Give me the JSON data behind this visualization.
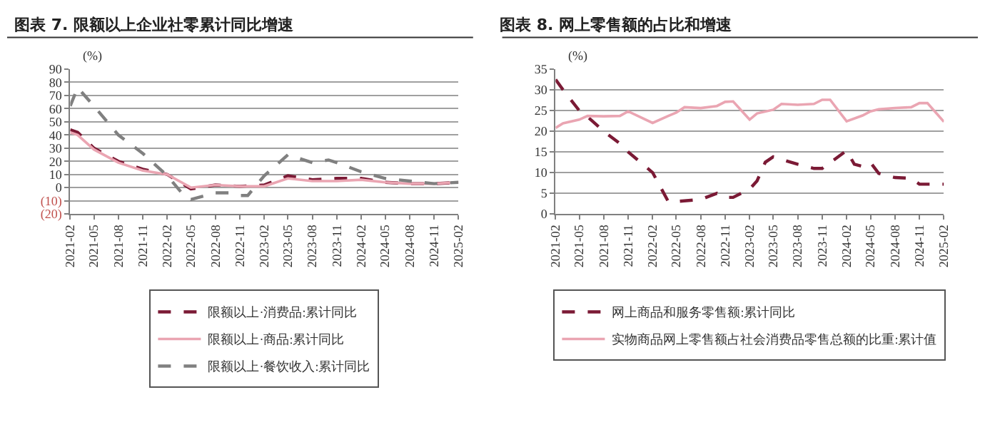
{
  "chart_data": [
    {
      "type": "line",
      "title": "图表 7. 限额以上企业社零累计同比增速",
      "ylabel": "(%)",
      "ylim": [
        -20,
        90
      ],
      "yticks": [
        {
          "value": -20,
          "label": "(20)"
        },
        {
          "value": -10,
          "label": "(10)"
        },
        0,
        10,
        20,
        30,
        40,
        50,
        60,
        70,
        80,
        90
      ],
      "xlim": [
        "2021-02",
        "2025-02"
      ],
      "xticks": [
        "2021-02",
        "2021-05",
        "2021-08",
        "2021-11",
        "2022-02",
        "2022-05",
        "2022-08",
        "2022-11",
        "2023-02",
        "2023-05",
        "2023-08",
        "2023-11",
        "2024-02",
        "2024-05",
        "2024-08",
        "2024-11",
        "2025-02"
      ],
      "grid": "y",
      "legend": "bottom",
      "marker": "none",
      "series": [
        {
          "name": "限额以上·消费品:累计同比",
          "color": "#7b1a35",
          "line_style": "dashed",
          "x": [
            "2021-02",
            "2021-03",
            "2021-05",
            "2021-08",
            "2021-11",
            "2022-02",
            "2022-05",
            "2022-08",
            "2022-11",
            "2023-02",
            "2023-05",
            "2023-08",
            "2023-11",
            "2024-02",
            "2024-05",
            "2024-08",
            "2024-11",
            "2025-02"
          ],
          "values": [
            44,
            42,
            30,
            20,
            14,
            10,
            -1,
            2,
            1,
            2,
            9,
            6,
            7,
            7,
            4,
            3,
            3,
            4
          ]
        },
        {
          "name": "限额以上·商品:累计同比",
          "color": "#eaa5b2",
          "line_style": "solid",
          "x": [
            "2021-02",
            "2021-03",
            "2021-05",
            "2021-08",
            "2021-11",
            "2022-02",
            "2022-05",
            "2022-08",
            "2022-11",
            "2023-02",
            "2023-05",
            "2023-08",
            "2023-11",
            "2024-02",
            "2024-05",
            "2024-08",
            "2024-11",
            "2025-02"
          ],
          "values": [
            42,
            40,
            29,
            19,
            13,
            10,
            0,
            2,
            1,
            1,
            7,
            5,
            5,
            6,
            4,
            3,
            3,
            4
          ]
        },
        {
          "name": "限额以上·餐饮收入:累计同比",
          "color": "#808080",
          "line_style": "dashed",
          "x": [
            "2021-02",
            "2021-03",
            "2021-05",
            "2021-08",
            "2021-11",
            "2022-02",
            "2022-04",
            "2022-05",
            "2022-08",
            "2022-10",
            "2022-11",
            "2022-12",
            "2023-02",
            "2023-03",
            "2023-05",
            "2023-08",
            "2023-10",
            "2023-11",
            "2024-02",
            "2024-05",
            "2024-08",
            "2024-11",
            "2025-02"
          ],
          "values": [
            62,
            76,
            62,
            40,
            26,
            9,
            -5,
            -9,
            -4,
            -4,
            -6,
            -6,
            9,
            14,
            25,
            19,
            21,
            19,
            12,
            7,
            5,
            3,
            4
          ]
        }
      ]
    },
    {
      "type": "line",
      "title": "图表 8. 网上零售额的占比和增速",
      "ylabel": "(%)",
      "ylim": [
        0,
        35
      ],
      "yticks": [
        0,
        5,
        10,
        15,
        20,
        25,
        30,
        35
      ],
      "xlim": [
        "2021-02",
        "2025-02"
      ],
      "xticks": [
        "2021-02",
        "2021-05",
        "2021-08",
        "2021-11",
        "2022-02",
        "2022-05",
        "2022-08",
        "2022-11",
        "2023-02",
        "2023-05",
        "2023-08",
        "2023-11",
        "2024-02",
        "2024-05",
        "2024-08",
        "2024-11",
        "2025-02"
      ],
      "grid": "y",
      "legend": "bottom",
      "marker": "none",
      "series": [
        {
          "name": "网上商品和服务零售额:累计同比",
          "color": "#7b1a35",
          "line_style": "dashed",
          "x": [
            "2021-02",
            "2021-03",
            "2021-05",
            "2021-06",
            "2021-08",
            "2021-10",
            "2021-11",
            "2022-02",
            "2022-04",
            "2022-05",
            "2022-08",
            "2022-10",
            "2022-11",
            "2022-12",
            "2023-02",
            "2023-03",
            "2023-04",
            "2023-05",
            "2023-08",
            "2023-10",
            "2023-11",
            "2024-02",
            "2024-03",
            "2024-04",
            "2024-05",
            "2024-06",
            "2024-08",
            "2024-10",
            "2024-11",
            "2025-02"
          ],
          "values": [
            32.5,
            30,
            25,
            23.5,
            20,
            17,
            15,
            10,
            3,
            3,
            3.5,
            5,
            4,
            4,
            6,
            8,
            12.5,
            13.8,
            12,
            11,
            11,
            15.3,
            12,
            11.5,
            12.4,
            9.8,
            8.8,
            8.6,
            7.2,
            7.2
          ]
        },
        {
          "name": "实物商品网上零售额占社会消费品零售总额的比重:累计值",
          "color": "#eaa5b2",
          "line_style": "solid",
          "x": [
            "2021-02",
            "2021-03",
            "2021-05",
            "2021-06",
            "2021-08",
            "2021-10",
            "2021-11",
            "2022-02",
            "2022-04",
            "2022-05",
            "2022-06",
            "2022-08",
            "2022-10",
            "2022-11",
            "2022-12",
            "2023-02",
            "2023-03",
            "2023-05",
            "2023-06",
            "2023-08",
            "2023-10",
            "2023-11",
            "2023-12",
            "2024-02",
            "2024-04",
            "2024-05",
            "2024-06",
            "2024-08",
            "2024-10",
            "2024-11",
            "2024-12",
            "2025-02"
          ],
          "values": [
            20.8,
            21.9,
            22.8,
            23.7,
            23.6,
            23.7,
            24.8,
            22.0,
            23.7,
            24.5,
            25.8,
            25.6,
            26.1,
            27.1,
            27.2,
            22.8,
            24.3,
            25.2,
            26.6,
            26.4,
            26.6,
            27.6,
            27.6,
            22.4,
            23.8,
            24.8,
            25.3,
            25.6,
            25.8,
            26.8,
            26.8,
            22.3
          ]
        }
      ]
    }
  ]
}
